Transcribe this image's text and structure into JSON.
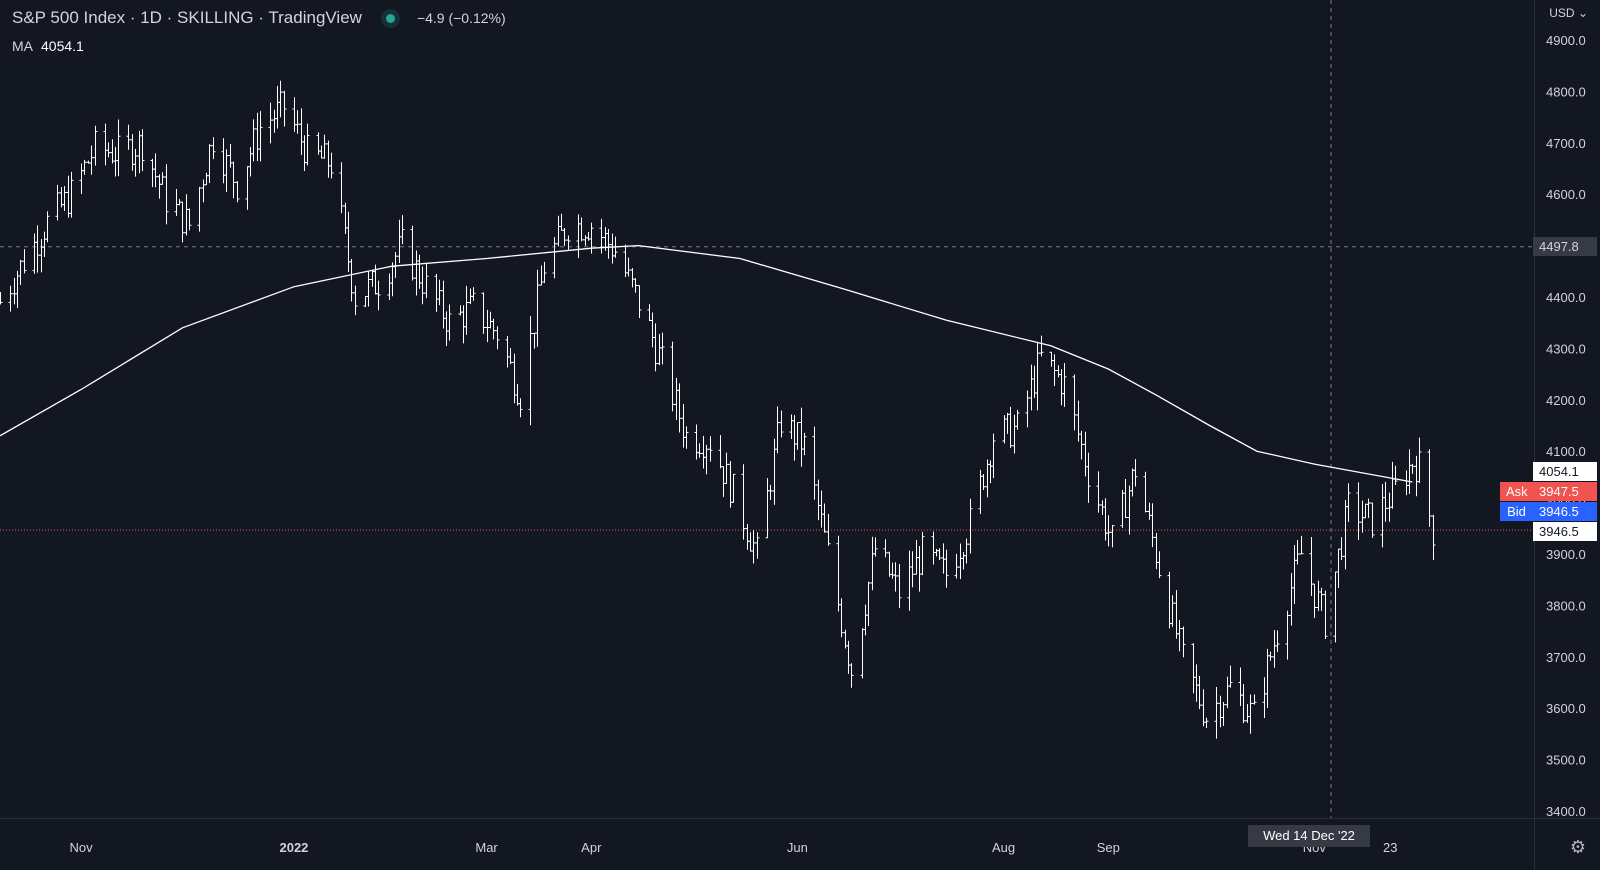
{
  "header": {
    "title": "S&P 500 Index · 1D · SKILLING · TradingView",
    "change": "−4.9 (−0.12%)",
    "status_color": "#26a69a"
  },
  "ma": {
    "label": "MA",
    "value": "4054.1"
  },
  "currency": "USD",
  "tags": {
    "crosshair_price": "4497.8",
    "ma_price": "4054.1",
    "ask_label": "Ask",
    "ask_price": "3947.5",
    "bid_label": "Bid",
    "bid_price": "3946.5",
    "last_price": "3946.5",
    "crosshair_date": "Wed 14 Dec '22",
    "partial_date": "23"
  },
  "colors": {
    "background": "#131722",
    "bars": "#ffffff",
    "ma_line": "#ffffff",
    "ask": "#f05350",
    "bid": "#2962ff",
    "last_price_line": "#f05350"
  },
  "chart_data": {
    "type": "line",
    "style": "ohlc-bars",
    "title": "S&P 500 Index · 1D · SKILLING · TradingView",
    "x_labels": [
      {
        "label": "Nov",
        "date": "2021-11-01"
      },
      {
        "label": "2022",
        "date": "2022-01-03"
      },
      {
        "label": "Mar",
        "date": "2022-03-01"
      },
      {
        "label": "Apr",
        "date": "2022-04-01"
      },
      {
        "label": "Jun",
        "date": "2022-06-01"
      },
      {
        "label": "Aug",
        "date": "2022-08-01"
      },
      {
        "label": "Sep",
        "date": "2022-09-01"
      },
      {
        "label": "Nov",
        "date": "2022-11-01"
      }
    ],
    "ylim": [
      3370,
      4940
    ],
    "y_ticks": [
      3400,
      3500,
      3600,
      3700,
      3800,
      3900,
      4000,
      4100,
      4200,
      4300,
      4400,
      4500,
      4600,
      4700,
      4800,
      4900
    ],
    "y_tick_labels": [
      "3400.0",
      "3500.0",
      "3600.0",
      "3700.0",
      "3800.0",
      "3900.0",
      "4000.0",
      "4100.0",
      "4200.0",
      "4300.0",
      "4400.0",
      "4500.0",
      "4600.0",
      "4700.0",
      "4800.0",
      "4900.0"
    ],
    "xlim": [
      "2021-10-08",
      "2023-01-05"
    ],
    "close_series": {
      "name": "S&P 500 Index",
      "points": [
        [
          "2021-10-08",
          4390
        ],
        [
          "2021-10-15",
          4470
        ],
        [
          "2021-10-22",
          4545
        ],
        [
          "2021-10-29",
          4600
        ],
        [
          "2021-11-05",
          4690
        ],
        [
          "2021-11-12",
          4680
        ],
        [
          "2021-11-19",
          4700
        ],
        [
          "2021-11-26",
          4590
        ],
        [
          "2021-12-03",
          4540
        ],
        [
          "2021-12-10",
          4710
        ],
        [
          "2021-12-17",
          4620
        ],
        [
          "2021-12-24",
          4730
        ],
        [
          "2021-12-31",
          4770
        ],
        [
          "2022-01-07",
          4680
        ],
        [
          "2022-01-14",
          4660
        ],
        [
          "2022-01-21",
          4400
        ],
        [
          "2022-01-28",
          4430
        ],
        [
          "2022-02-04",
          4500
        ],
        [
          "2022-02-11",
          4420
        ],
        [
          "2022-02-18",
          4350
        ],
        [
          "2022-02-25",
          4380
        ],
        [
          "2022-03-04",
          4330
        ],
        [
          "2022-03-11",
          4210
        ],
        [
          "2022-03-18",
          4460
        ],
        [
          "2022-03-25",
          4540
        ],
        [
          "2022-04-01",
          4540
        ],
        [
          "2022-04-08",
          4490
        ],
        [
          "2022-04-15",
          4390
        ],
        [
          "2022-04-22",
          4270
        ],
        [
          "2022-04-29",
          4130
        ],
        [
          "2022-05-06",
          4120
        ],
        [
          "2022-05-13",
          4020
        ],
        [
          "2022-05-20",
          3900
        ],
        [
          "2022-05-27",
          4160
        ],
        [
          "2022-06-03",
          4110
        ],
        [
          "2022-06-10",
          3900
        ],
        [
          "2022-06-17",
          3675
        ],
        [
          "2022-06-24",
          3910
        ],
        [
          "2022-07-01",
          3825
        ],
        [
          "2022-07-08",
          3900
        ],
        [
          "2022-07-15",
          3860
        ],
        [
          "2022-07-22",
          3960
        ],
        [
          "2022-07-29",
          4130
        ],
        [
          "2022-08-05",
          4145
        ],
        [
          "2022-08-12",
          4280
        ],
        [
          "2022-08-19",
          4230
        ],
        [
          "2022-08-26",
          4060
        ],
        [
          "2022-09-02",
          3925
        ],
        [
          "2022-09-09",
          4065
        ],
        [
          "2022-09-16",
          3875
        ],
        [
          "2022-09-23",
          3695
        ],
        [
          "2022-09-30",
          3585
        ],
        [
          "2022-10-07",
          3640
        ],
        [
          "2022-10-14",
          3585
        ],
        [
          "2022-10-21",
          3750
        ],
        [
          "2022-10-28",
          3900
        ],
        [
          "2022-11-04",
          3770
        ],
        [
          "2022-11-11",
          3990
        ],
        [
          "2022-11-18",
          3965
        ],
        [
          "2022-11-25",
          4025
        ],
        [
          "2022-11-30",
          4080
        ],
        [
          "2022-12-02",
          4070
        ],
        [
          "2022-12-06",
          3945
        ]
      ]
    },
    "ma_series": {
      "name": "MA",
      "points": [
        [
          "2021-10-08",
          4130
        ],
        [
          "2021-11-01",
          4220
        ],
        [
          "2021-12-01",
          4340
        ],
        [
          "2022-01-03",
          4420
        ],
        [
          "2022-02-01",
          4460
        ],
        [
          "2022-03-01",
          4475
        ],
        [
          "2022-04-01",
          4495
        ],
        [
          "2022-04-15",
          4500
        ],
        [
          "2022-05-15",
          4475
        ],
        [
          "2022-06-15",
          4415
        ],
        [
          "2022-07-15",
          4355
        ],
        [
          "2022-08-15",
          4305
        ],
        [
          "2022-09-01",
          4260
        ],
        [
          "2022-09-15",
          4210
        ],
        [
          "2022-10-01",
          4150
        ],
        [
          "2022-10-15",
          4100
        ],
        [
          "2022-11-01",
          4075
        ],
        [
          "2022-11-30",
          4040
        ]
      ]
    }
  }
}
